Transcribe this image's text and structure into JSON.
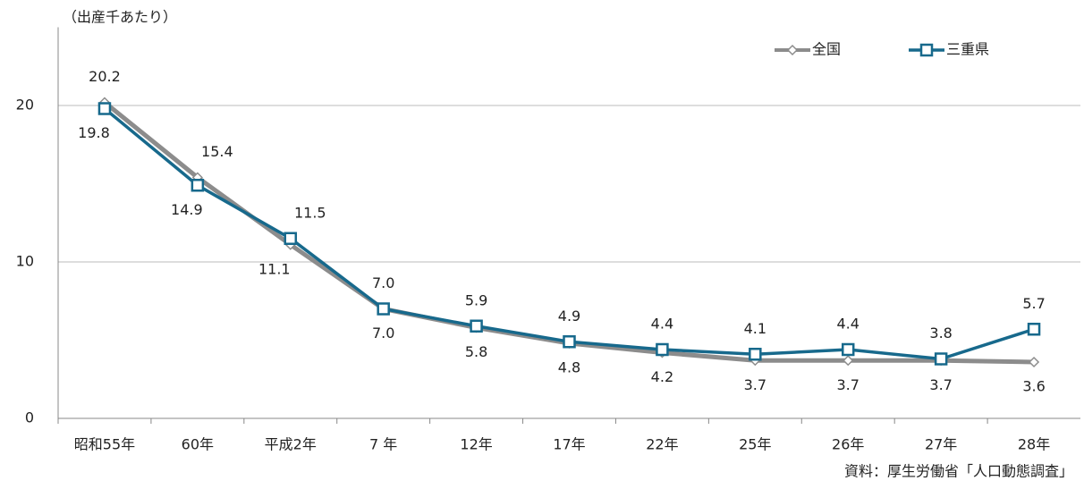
{
  "chart_data": {
    "type": "line",
    "unit_label": "（出産千あたり）",
    "source": "資料：厚生労働省「人口動態調査」",
    "categories": [
      "昭和55年",
      "60年",
      "平成2年",
      "7 年",
      "12年",
      "17年",
      "22年",
      "25年",
      "26年",
      "27年",
      "28年"
    ],
    "series": [
      {
        "name": "全国",
        "color": "#8c8c8c",
        "marker": "diamond",
        "values": [
          20.2,
          15.4,
          11.1,
          7.0,
          5.8,
          4.8,
          4.2,
          3.7,
          3.7,
          3.7,
          3.6
        ],
        "value_labels": [
          "20.2",
          "15.4",
          "11.1",
          "7.0",
          "5.8",
          "4.8",
          "4.2",
          "3.7",
          "3.7",
          "3.7",
          "3.6"
        ]
      },
      {
        "name": "三重県",
        "color": "#17698c",
        "marker": "square",
        "values": [
          19.8,
          14.9,
          11.5,
          7.0,
          5.9,
          4.9,
          4.4,
          4.1,
          4.4,
          3.8,
          5.7
        ],
        "value_labels": [
          "19.8",
          "14.9",
          "11.5",
          "7.0",
          "5.9",
          "4.9",
          "4.4",
          "4.1",
          "4.4",
          "3.8",
          "5.7"
        ]
      }
    ],
    "ylim": [
      0,
      25
    ],
    "yticks": [
      0,
      10,
      20
    ],
    "grid": true,
    "legend": "top-right"
  }
}
